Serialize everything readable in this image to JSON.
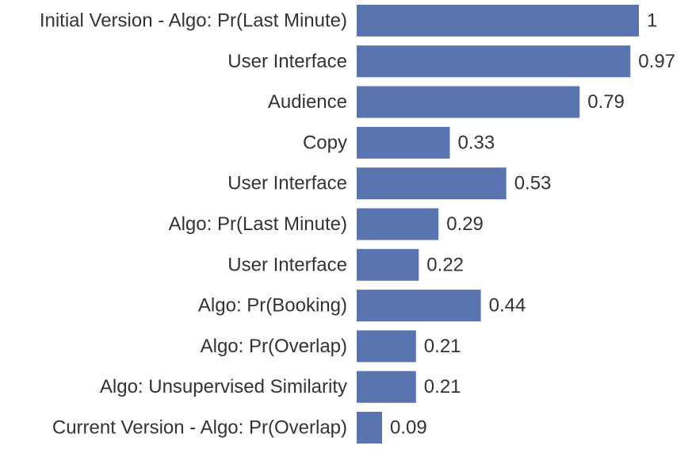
{
  "chart_data": {
    "type": "bar",
    "orientation": "horizontal",
    "categories": [
      "Initial Version - Algo: Pr(Last Minute)",
      "User Interface",
      "Audience",
      "Copy",
      "User Interface",
      "Algo: Pr(Last Minute)",
      "User Interface",
      "Algo: Pr(Booking)",
      "Algo: Pr(Overlap)",
      "Algo: Unsupervised Similarity",
      "Current Version - Algo: Pr(Overlap)"
    ],
    "values": [
      1,
      0.97,
      0.79,
      0.33,
      0.53,
      0.29,
      0.22,
      0.44,
      0.21,
      0.21,
      0.09
    ],
    "value_labels": [
      "1",
      "0.97",
      "0.79",
      "0.33",
      "0.53",
      "0.29",
      "0.22",
      "0.44",
      "0.21",
      "0.21",
      "0.09"
    ],
    "xlim": [
      0,
      1
    ],
    "grid": false,
    "bar_color": "#5975b0",
    "text_color": "#333333"
  }
}
